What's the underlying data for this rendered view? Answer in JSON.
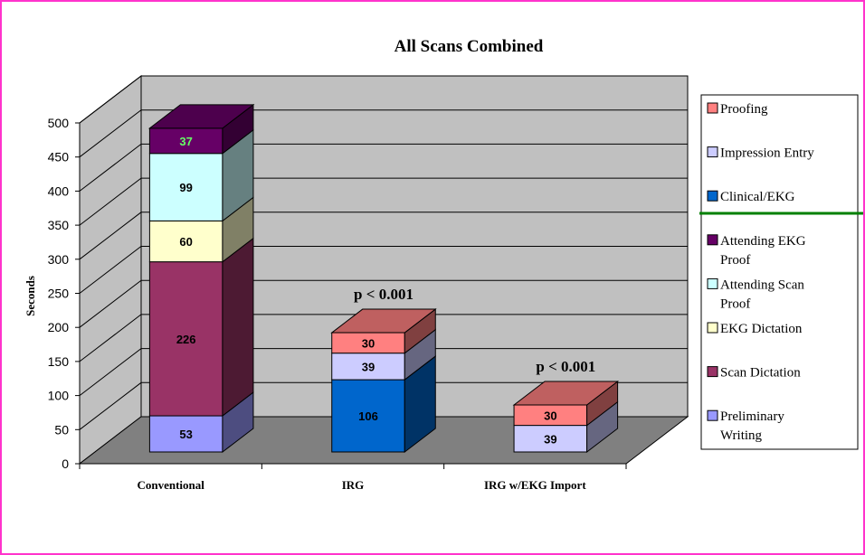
{
  "chart_data": {
    "type": "bar",
    "stacked": true,
    "three_d": true,
    "title": "All Scans Combined",
    "xlabel": "",
    "ylabel": "Seconds",
    "ylim": [
      0,
      500
    ],
    "yticks": [
      0,
      50,
      100,
      150,
      200,
      250,
      300,
      350,
      400,
      450,
      500
    ],
    "grid": true,
    "legend_position": "right",
    "categories": [
      "Conventional",
      "IRG",
      "IRG w/EKG Import"
    ],
    "series": [
      {
        "name": "Preliminary Writing",
        "color": "#9999ff",
        "values": [
          53,
          0,
          0
        ]
      },
      {
        "name": "Clinical/EKG",
        "color": "#0066cc",
        "values": [
          0,
          106,
          0
        ]
      },
      {
        "name": "Scan Dictation",
        "color": "#993366",
        "values": [
          226,
          0,
          0
        ]
      },
      {
        "name": "EKG Dictation",
        "color": "#ffffcc",
        "values": [
          60,
          0,
          0
        ]
      },
      {
        "name": "Impression Entry",
        "color": "#ccccff",
        "values": [
          0,
          39,
          39
        ]
      },
      {
        "name": "Attending Scan Proof",
        "color": "#ccffff",
        "values": [
          99,
          0,
          0
        ]
      },
      {
        "name": "Proofing",
        "color": "#ff8080",
        "values": [
          0,
          30,
          30
        ]
      },
      {
        "name": "Attending EKG Proof",
        "color": "#660066",
        "values": [
          37,
          0,
          0
        ]
      }
    ],
    "annotations": [
      {
        "category": "IRG",
        "text": "p < 0.001"
      },
      {
        "category": "IRG w/EKG Import",
        "text": "p < 0.001"
      }
    ],
    "legend_order": [
      "Proofing",
      "Impression Entry",
      "Clinical/EKG",
      "Attending EKG Proof",
      "Attending Scan Proof",
      "EKG Dictation",
      "Scan Dictation",
      "Preliminary Writing"
    ]
  }
}
